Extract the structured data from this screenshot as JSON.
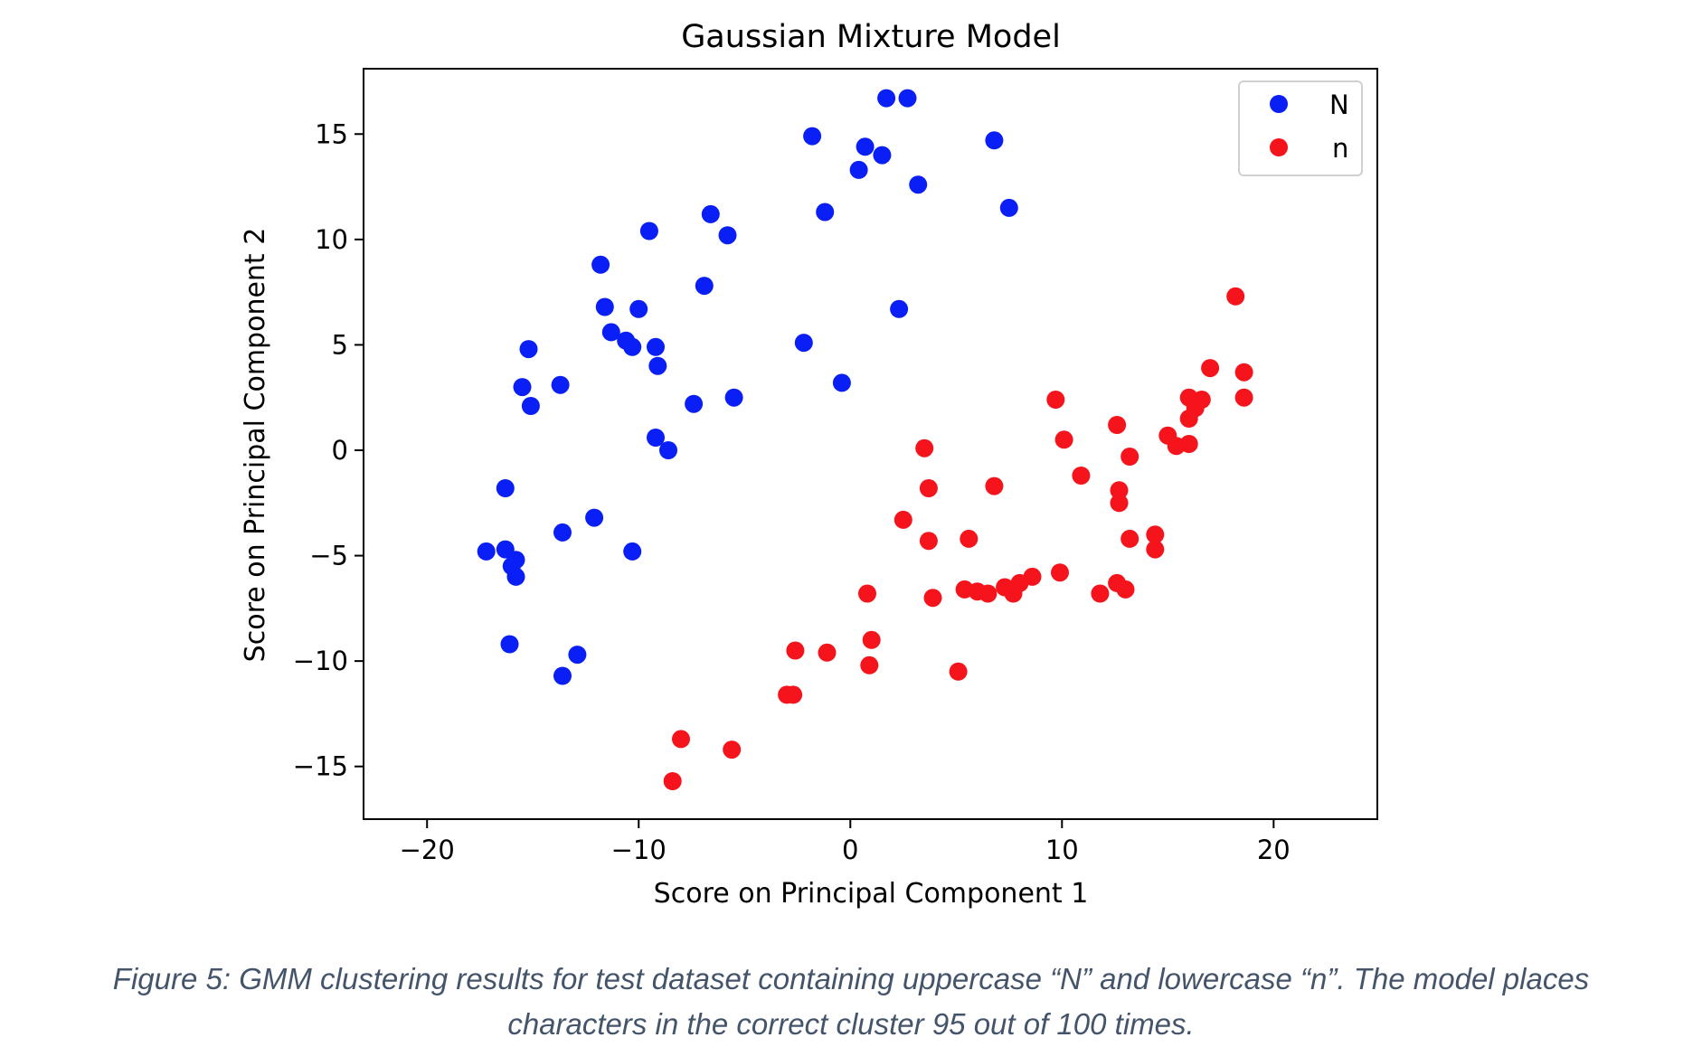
{
  "chart_data": {
    "type": "scatter",
    "title": "Gaussian Mixture Model",
    "xlabel": "Score on Principal Component 1",
    "ylabel": "Score on Principal Component 2",
    "xlim": [
      -23,
      24.9
    ],
    "ylim": [
      -17.5,
      18.1
    ],
    "xticks": [
      -20,
      -10,
      0,
      10,
      20
    ],
    "yticks": [
      -15,
      -10,
      -5,
      0,
      5,
      10,
      15
    ],
    "xtick_labels": [
      "−20",
      "−10",
      "0",
      "10",
      "20"
    ],
    "ytick_labels": [
      "−15",
      "−10",
      "−5",
      "0",
      "5",
      "10",
      "15"
    ],
    "grid": false,
    "legend_position": "top-right",
    "series": [
      {
        "name": "N",
        "color": "#0a1ff5",
        "points": [
          [
            1.7,
            16.7
          ],
          [
            2.7,
            16.7
          ],
          [
            -1.8,
            14.9
          ],
          [
            0.7,
            14.4
          ],
          [
            1.5,
            14.0
          ],
          [
            6.8,
            14.7
          ],
          [
            0.4,
            13.3
          ],
          [
            3.2,
            12.6
          ],
          [
            -1.2,
            11.3
          ],
          [
            7.5,
            11.5
          ],
          [
            -6.6,
            11.2
          ],
          [
            -9.5,
            10.4
          ],
          [
            -5.8,
            10.2
          ],
          [
            -11.8,
            8.8
          ],
          [
            -6.9,
            7.8
          ],
          [
            -11.6,
            6.8
          ],
          [
            -10.0,
            6.7
          ],
          [
            2.3,
            6.7
          ],
          [
            -11.3,
            5.6
          ],
          [
            -10.6,
            5.2
          ],
          [
            -10.3,
            4.9
          ],
          [
            -9.2,
            4.9
          ],
          [
            -15.2,
            4.8
          ],
          [
            -2.2,
            5.1
          ],
          [
            -9.1,
            4.0
          ],
          [
            -15.5,
            3.0
          ],
          [
            -13.7,
            3.1
          ],
          [
            -0.4,
            3.2
          ],
          [
            -15.1,
            2.1
          ],
          [
            -7.4,
            2.2
          ],
          [
            -5.5,
            2.5
          ],
          [
            -9.2,
            0.6
          ],
          [
            -8.6,
            0.0
          ],
          [
            -16.3,
            -1.8
          ],
          [
            -12.1,
            -3.2
          ],
          [
            -13.6,
            -3.9
          ],
          [
            -17.2,
            -4.8
          ],
          [
            -16.3,
            -4.7
          ],
          [
            -10.3,
            -4.8
          ],
          [
            -16.0,
            -5.5
          ],
          [
            -15.8,
            -5.2
          ],
          [
            -15.8,
            -6.0
          ],
          [
            -16.1,
            -9.2
          ],
          [
            -12.9,
            -9.7
          ],
          [
            -13.6,
            -10.7
          ]
        ]
      },
      {
        "name": "n",
        "color": "#f5141c",
        "points": [
          [
            18.2,
            7.3
          ],
          [
            17.0,
            3.9
          ],
          [
            18.6,
            3.7
          ],
          [
            18.6,
            2.5
          ],
          [
            16.0,
            2.5
          ],
          [
            16.6,
            2.4
          ],
          [
            16.3,
            2.0
          ],
          [
            16.0,
            1.5
          ],
          [
            9.7,
            2.4
          ],
          [
            12.6,
            1.2
          ],
          [
            15.0,
            0.7
          ],
          [
            15.4,
            0.2
          ],
          [
            16.0,
            0.3
          ],
          [
            10.1,
            0.5
          ],
          [
            3.5,
            0.1
          ],
          [
            13.2,
            -0.3
          ],
          [
            10.9,
            -1.2
          ],
          [
            3.7,
            -1.8
          ],
          [
            6.8,
            -1.7
          ],
          [
            12.7,
            -1.9
          ],
          [
            12.7,
            -2.5
          ],
          [
            2.5,
            -3.3
          ],
          [
            14.4,
            -4.0
          ],
          [
            13.2,
            -4.2
          ],
          [
            3.7,
            -4.3
          ],
          [
            5.6,
            -4.2
          ],
          [
            14.4,
            -4.7
          ],
          [
            9.9,
            -5.8
          ],
          [
            8.6,
            -6.0
          ],
          [
            8.0,
            -6.3
          ],
          [
            7.3,
            -6.5
          ],
          [
            12.6,
            -6.3
          ],
          [
            5.4,
            -6.6
          ],
          [
            6.0,
            -6.7
          ],
          [
            6.5,
            -6.8
          ],
          [
            7.7,
            -6.8
          ],
          [
            11.8,
            -6.8
          ],
          [
            13.0,
            -6.6
          ],
          [
            0.8,
            -6.8
          ],
          [
            3.9,
            -7.0
          ],
          [
            1.0,
            -9.0
          ],
          [
            -2.6,
            -9.5
          ],
          [
            -1.1,
            -9.6
          ],
          [
            0.9,
            -10.2
          ],
          [
            5.1,
            -10.5
          ],
          [
            -3.0,
            -11.6
          ],
          [
            -2.7,
            -11.6
          ],
          [
            -8.0,
            -13.7
          ],
          [
            -5.6,
            -14.2
          ],
          [
            -8.4,
            -15.7
          ]
        ]
      }
    ]
  },
  "caption": {
    "line1": "Figure 5: GMM clustering results for test dataset containing uppercase “N” and lowercase “n”. The model places",
    "line2": "characters in the correct cluster 95 out of 100 times."
  }
}
